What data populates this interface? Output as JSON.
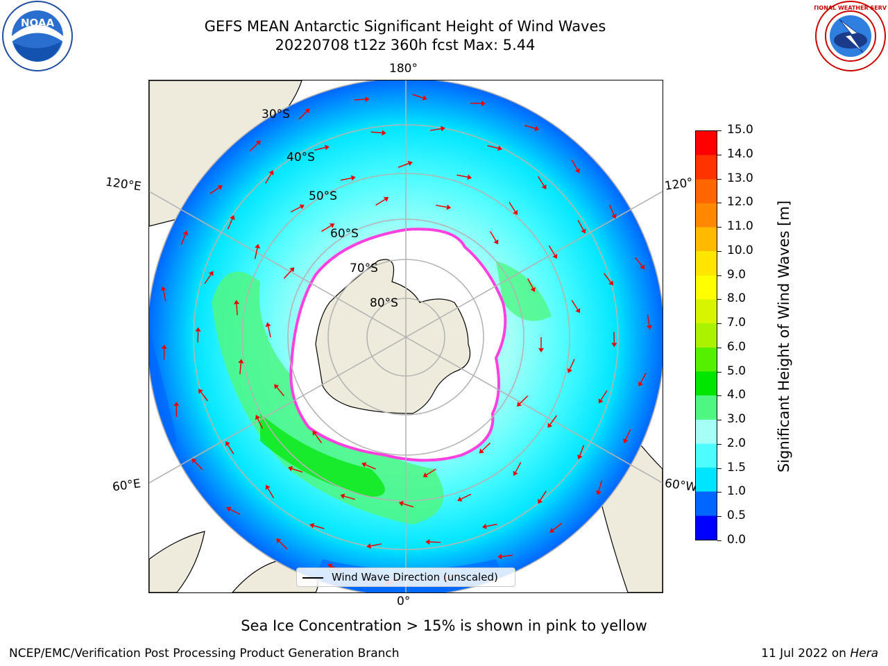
{
  "header": {
    "title": "GEFS MEAN Antarctic Significant Height of Wind Waves",
    "subtitle": "20220708 t12z 360h fcst   Max: 5.44"
  },
  "logos": {
    "noaa_text": "NOAA",
    "nws_text": "NATIONAL WEATHER SERVICE"
  },
  "map": {
    "longitude_labels": {
      "top": "180°",
      "bottom": "0°",
      "left_upper": "120°E",
      "left_lower": "60°E",
      "right_upper": "120°",
      "right_lower": "60°W"
    },
    "latitude_labels": [
      "30°S",
      "40°S",
      "50°S",
      "60°S",
      "70°S",
      "80°S"
    ],
    "legend_label": "Wind Wave Direction (unscaled)",
    "colors": {
      "land": "#efebdc",
      "coast": "#000000",
      "grid": "#b4b4b4",
      "arrow": "#ee0000",
      "ice_edge": "#ff40e0"
    }
  },
  "colorbar": {
    "title": "Significant Height of Wind Waves [m]",
    "ticks": [
      "0.0",
      "0.5",
      "1.0",
      "1.5",
      "2.0",
      "3.0",
      "4.0",
      "5.0",
      "6.0",
      "7.0",
      "8.0",
      "9.0",
      "10.0",
      "11.0",
      "12.0",
      "13.0",
      "14.0",
      "15.0"
    ],
    "colors": [
      "#0000ff",
      "#0066ff",
      "#00e5ff",
      "#4dfcff",
      "#a6fff7",
      "#4ff782",
      "#00e600",
      "#55ef00",
      "#aaf200",
      "#d8f500",
      "#ffff00",
      "#ffe600",
      "#ffbb00",
      "#ff8800",
      "#ff6600",
      "#ff3300",
      "#ff0000"
    ]
  },
  "note": "Sea Ice Concentration > 15% is shown in pink to yellow",
  "footer": {
    "left": "NCEP/EMC/Verification Post Processing Product Generation Branch",
    "right_date": "11 Jul 2022 on ",
    "right_machine": "Hera"
  }
}
